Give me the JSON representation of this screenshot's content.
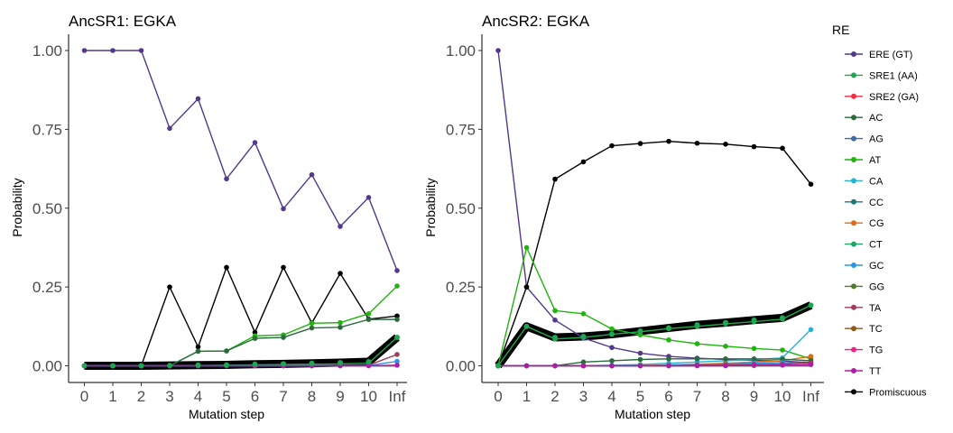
{
  "legend": {
    "title": "RE",
    "entries": [
      {
        "name": "ERE (GT)",
        "color": "#53388c"
      },
      {
        "name": "SRE1 (AA)",
        "color": "#1da750"
      },
      {
        "name": "SRE2 (GA)",
        "color": "#f02d46"
      },
      {
        "name": "AC",
        "color": "#2a6a3d"
      },
      {
        "name": "AG",
        "color": "#3c6ea6"
      },
      {
        "name": "AT",
        "color": "#1fb40e"
      },
      {
        "name": "CA",
        "color": "#27b2d3"
      },
      {
        "name": "CC",
        "color": "#187b7b"
      },
      {
        "name": "CG",
        "color": "#e36b16"
      },
      {
        "name": "CT",
        "color": "#21a365"
      },
      {
        "name": "GC",
        "color": "#2a95e8"
      },
      {
        "name": "GG",
        "color": "#4a7d25"
      },
      {
        "name": "TA",
        "color": "#9e3f5a"
      },
      {
        "name": "TC",
        "color": "#8c5a1d"
      },
      {
        "name": "TG",
        "color": "#f0208a"
      },
      {
        "name": "TT",
        "color": "#b01aa8"
      },
      {
        "name": "Promiscuous",
        "color": "#000000"
      }
    ]
  },
  "chart_data": [
    {
      "type": "line",
      "title": "AncSR1: EGKA",
      "xlabel": "Mutation step",
      "ylabel": "Probability",
      "x": [
        "0",
        "1",
        "2",
        "3",
        "4",
        "5",
        "6",
        "7",
        "8",
        "9",
        "10",
        "Inf"
      ],
      "yticks": [
        "0.00",
        "0.25",
        "0.50",
        "0.75",
        "1.00"
      ],
      "ylim": [
        0,
        1
      ],
      "grid": false,
      "series": [
        {
          "name": "ERE (GT)",
          "values": [
            1.0,
            1.0,
            1.0,
            0.753,
            0.847,
            0.593,
            0.708,
            0.498,
            0.606,
            0.442,
            0.534,
            0.302
          ]
        },
        {
          "name": "Promiscuous",
          "values": [
            0,
            0,
            0,
            0.25,
            0.06,
            0.312,
            0.106,
            0.312,
            0.136,
            0.293,
            0.148,
            0.158
          ]
        },
        {
          "name": "AT",
          "values": [
            0,
            0,
            0,
            0,
            0.046,
            0.047,
            0.095,
            0.098,
            0.135,
            0.137,
            0.165,
            0.253
          ]
        },
        {
          "name": "AC",
          "values": [
            0,
            0,
            0,
            0,
            0.046,
            0.047,
            0.087,
            0.09,
            0.12,
            0.122,
            0.147,
            0.147
          ]
        },
        {
          "name": "SRE1 (AA)",
          "values": [
            0,
            0,
            0,
            0,
            0.001,
            0.002,
            0.003,
            0.004,
            0.005,
            0.006,
            0.008,
            0.09
          ]
        },
        {
          "name": "TA",
          "values": [
            0,
            0,
            0,
            0,
            0,
            0,
            0,
            0,
            0,
            0.001,
            0.002,
            0.036
          ]
        },
        {
          "name": "GC",
          "values": [
            0,
            0,
            0,
            0,
            0,
            0,
            0,
            0,
            0,
            0,
            0.001,
            0.014
          ]
        },
        {
          "name": "TT",
          "values": [
            0,
            0,
            0,
            0,
            0,
            0,
            0,
            0,
            0,
            0,
            0,
            0.002
          ]
        }
      ],
      "thick_series": {
        "name": "Promiscuous",
        "values": [
          0,
          0,
          0,
          0.001,
          0.002,
          0.003,
          0.005,
          0.006,
          0.008,
          0.01,
          0.013,
          0.09
        ]
      }
    },
    {
      "type": "line",
      "title": "AncSR2: EGKA",
      "xlabel": "Mutation step",
      "ylabel": "Probability",
      "x": [
        "0",
        "1",
        "2",
        "3",
        "4",
        "5",
        "6",
        "7",
        "8",
        "9",
        "10",
        "Inf"
      ],
      "yticks": [
        "0.00",
        "0.25",
        "0.50",
        "0.75",
        "1.00"
      ],
      "ylim": [
        0,
        1
      ],
      "grid": false,
      "series": [
        {
          "name": "ERE (GT)",
          "values": [
            1.0,
            0.25,
            0.145,
            0.088,
            0.058,
            0.04,
            0.03,
            0.024,
            0.02,
            0.017,
            0.015,
            0.01
          ]
        },
        {
          "name": "Promiscuous",
          "values": [
            0,
            0.25,
            0.592,
            0.647,
            0.698,
            0.705,
            0.712,
            0.706,
            0.703,
            0.695,
            0.69,
            0.576
          ]
        },
        {
          "name": "AT",
          "values": [
            0,
            0.375,
            0.175,
            0.165,
            0.117,
            0.098,
            0.082,
            0.07,
            0.062,
            0.055,
            0.05,
            0.022
          ]
        },
        {
          "name": "SRE1 (AA)",
          "values": [
            0,
            0.125,
            0.085,
            0.09,
            0.1,
            0.108,
            0.118,
            0.125,
            0.133,
            0.14,
            0.148,
            0.192
          ]
        },
        {
          "name": "CA",
          "values": [
            0,
            0,
            0,
            0,
            0.002,
            0.004,
            0.008,
            0.012,
            0.016,
            0.02,
            0.025,
            0.115
          ]
        },
        {
          "name": "CG",
          "values": [
            0,
            0,
            0,
            0,
            0,
            0.001,
            0.003,
            0.005,
            0.008,
            0.012,
            0.016,
            0.03
          ]
        },
        {
          "name": "AC",
          "values": [
            0,
            0,
            0,
            0.012,
            0.016,
            0.02,
            0.022,
            0.022,
            0.022,
            0.022,
            0.021,
            0.016
          ]
        },
        {
          "name": "GC",
          "values": [
            0,
            0,
            0,
            0,
            0,
            0,
            0.002,
            0.004,
            0.006,
            0.008,
            0.01,
            0.008
          ]
        },
        {
          "name": "TA",
          "values": [
            0,
            0,
            0,
            0,
            0,
            0,
            0,
            0.002,
            0.003,
            0.004,
            0.005,
            0.01
          ]
        },
        {
          "name": "TT",
          "values": [
            0,
            0,
            0,
            0,
            0,
            0,
            0,
            0,
            0,
            0.001,
            0.002,
            0.004
          ]
        }
      ],
      "thick_series": {
        "name": "Promiscuous",
        "values": [
          0,
          0.125,
          0.09,
          0.093,
          0.1,
          0.11,
          0.12,
          0.13,
          0.137,
          0.145,
          0.152,
          0.192
        ]
      }
    }
  ]
}
